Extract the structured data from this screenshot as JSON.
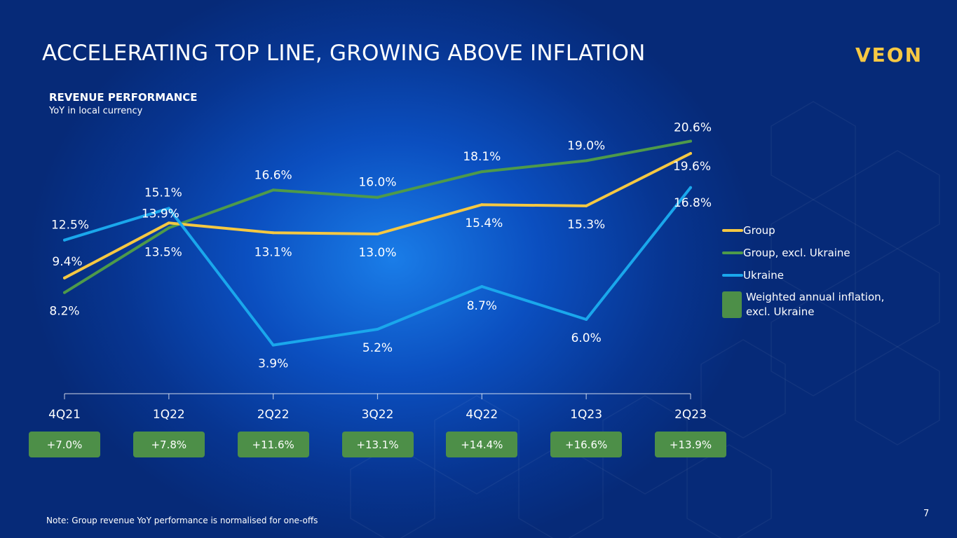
{
  "title": "ACCELERATING TOP LINE, GROWING ABOVE INFLATION",
  "logo_text": "VEON",
  "section_title": "REVENUE PERFORMANCE",
  "section_subtitle": "YoY in local currency",
  "note": "Note: Group revenue YoY performance is normalised for one-offs",
  "page_number": "7",
  "colors": {
    "group": "#f5c842",
    "group_excl_ukraine": "#4e9a4a",
    "ukraine": "#1aa7ec",
    "inflation_badge": "#4d8f48",
    "logo": "#f7c843"
  },
  "legend": {
    "group": "Group",
    "group_excl_ukraine": "Group, excl. Ukraine",
    "ukraine": "Ukraine",
    "inflation": "Weighted annual inflation, excl. Ukraine"
  },
  "chart_data": {
    "type": "line",
    "title": "REVENUE PERFORMANCE",
    "subtitle": "YoY in local currency",
    "categories": [
      "4Q21",
      "1Q22",
      "2Q22",
      "3Q22",
      "4Q22",
      "1Q23",
      "2Q23"
    ],
    "ylim": [
      0,
      25
    ],
    "grid": false,
    "legend_position": "right",
    "series": [
      {
        "key": "group",
        "name": "Group",
        "values": [
          9.4,
          13.9,
          13.1,
          13.0,
          15.4,
          15.3,
          19.6
        ],
        "labels": [
          "9.4%",
          "13.9%",
          "13.1%",
          "13.0%",
          "15.4%",
          "15.3%",
          "19.6%"
        ]
      },
      {
        "key": "group_excl_ukraine",
        "name": "Group, excl. Ukraine",
        "values": [
          8.2,
          13.5,
          16.6,
          16.0,
          18.1,
          19.0,
          20.6
        ],
        "labels": [
          "8.2%",
          "13.5%",
          "16.6%",
          "16.0%",
          "18.1%",
          "19.0%",
          "20.6%"
        ]
      },
      {
        "key": "ukraine",
        "name": "Ukraine",
        "values": [
          12.5,
          15.1,
          3.9,
          5.2,
          8.7,
          6.0,
          16.8
        ],
        "labels": [
          "12.5%",
          "15.1%",
          "3.9%",
          "5.2%",
          "8.7%",
          "6.0%",
          "16.8%"
        ]
      }
    ],
    "inflation": {
      "name": "Weighted annual inflation, excl. Ukraine",
      "values": [
        7.0,
        7.8,
        11.6,
        13.1,
        14.4,
        16.6,
        13.9
      ],
      "labels": [
        "+7.0%",
        "+7.8%",
        "+11.6%",
        "+13.1%",
        "+14.4%",
        "+16.6%",
        "+13.9%"
      ]
    }
  }
}
